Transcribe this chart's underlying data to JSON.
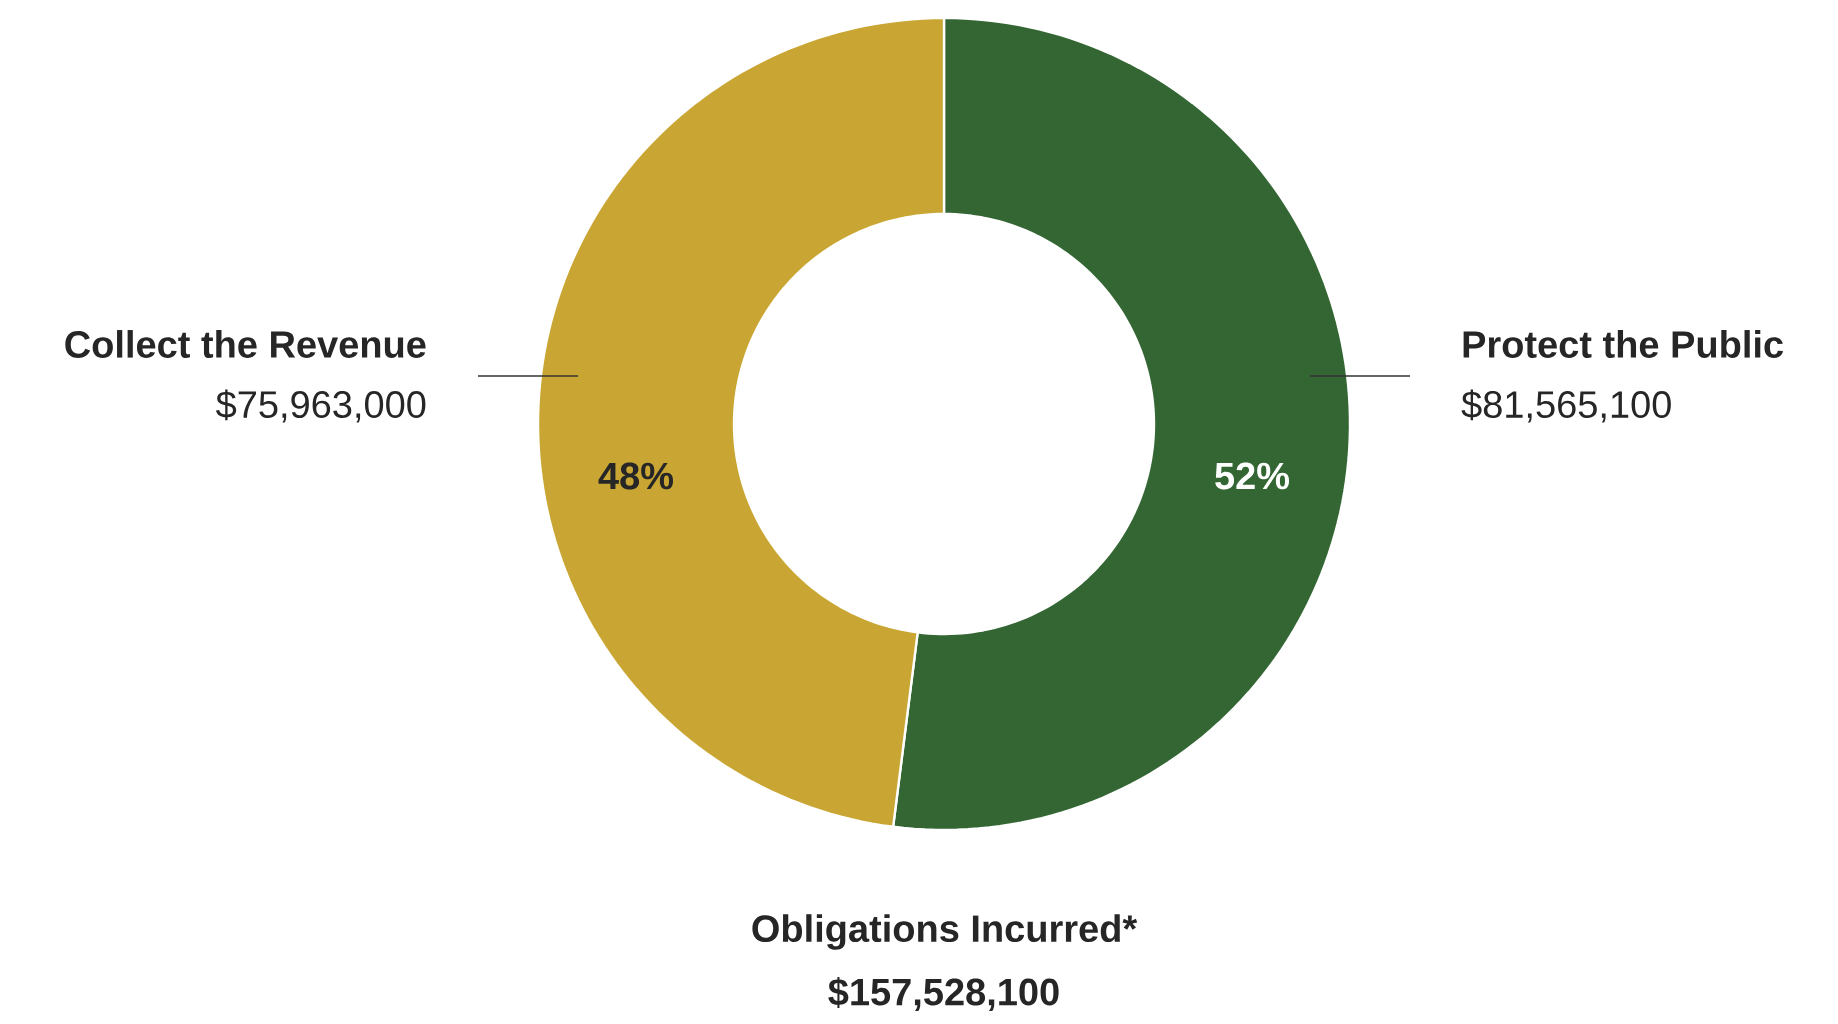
{
  "chart_data": {
    "type": "donut",
    "title": "Obligations Incurred*",
    "subtitle": "$157,528,100",
    "categories": [
      "Protect the Public",
      "Collect the Revenue"
    ],
    "values": [
      52,
      48
    ],
    "colors": [
      "#336633",
      "#c9a633"
    ],
    "value_labels": [
      "52%",
      "48%"
    ],
    "annotations": [
      "$81,565,100",
      "$75,963,000"
    ]
  }
}
